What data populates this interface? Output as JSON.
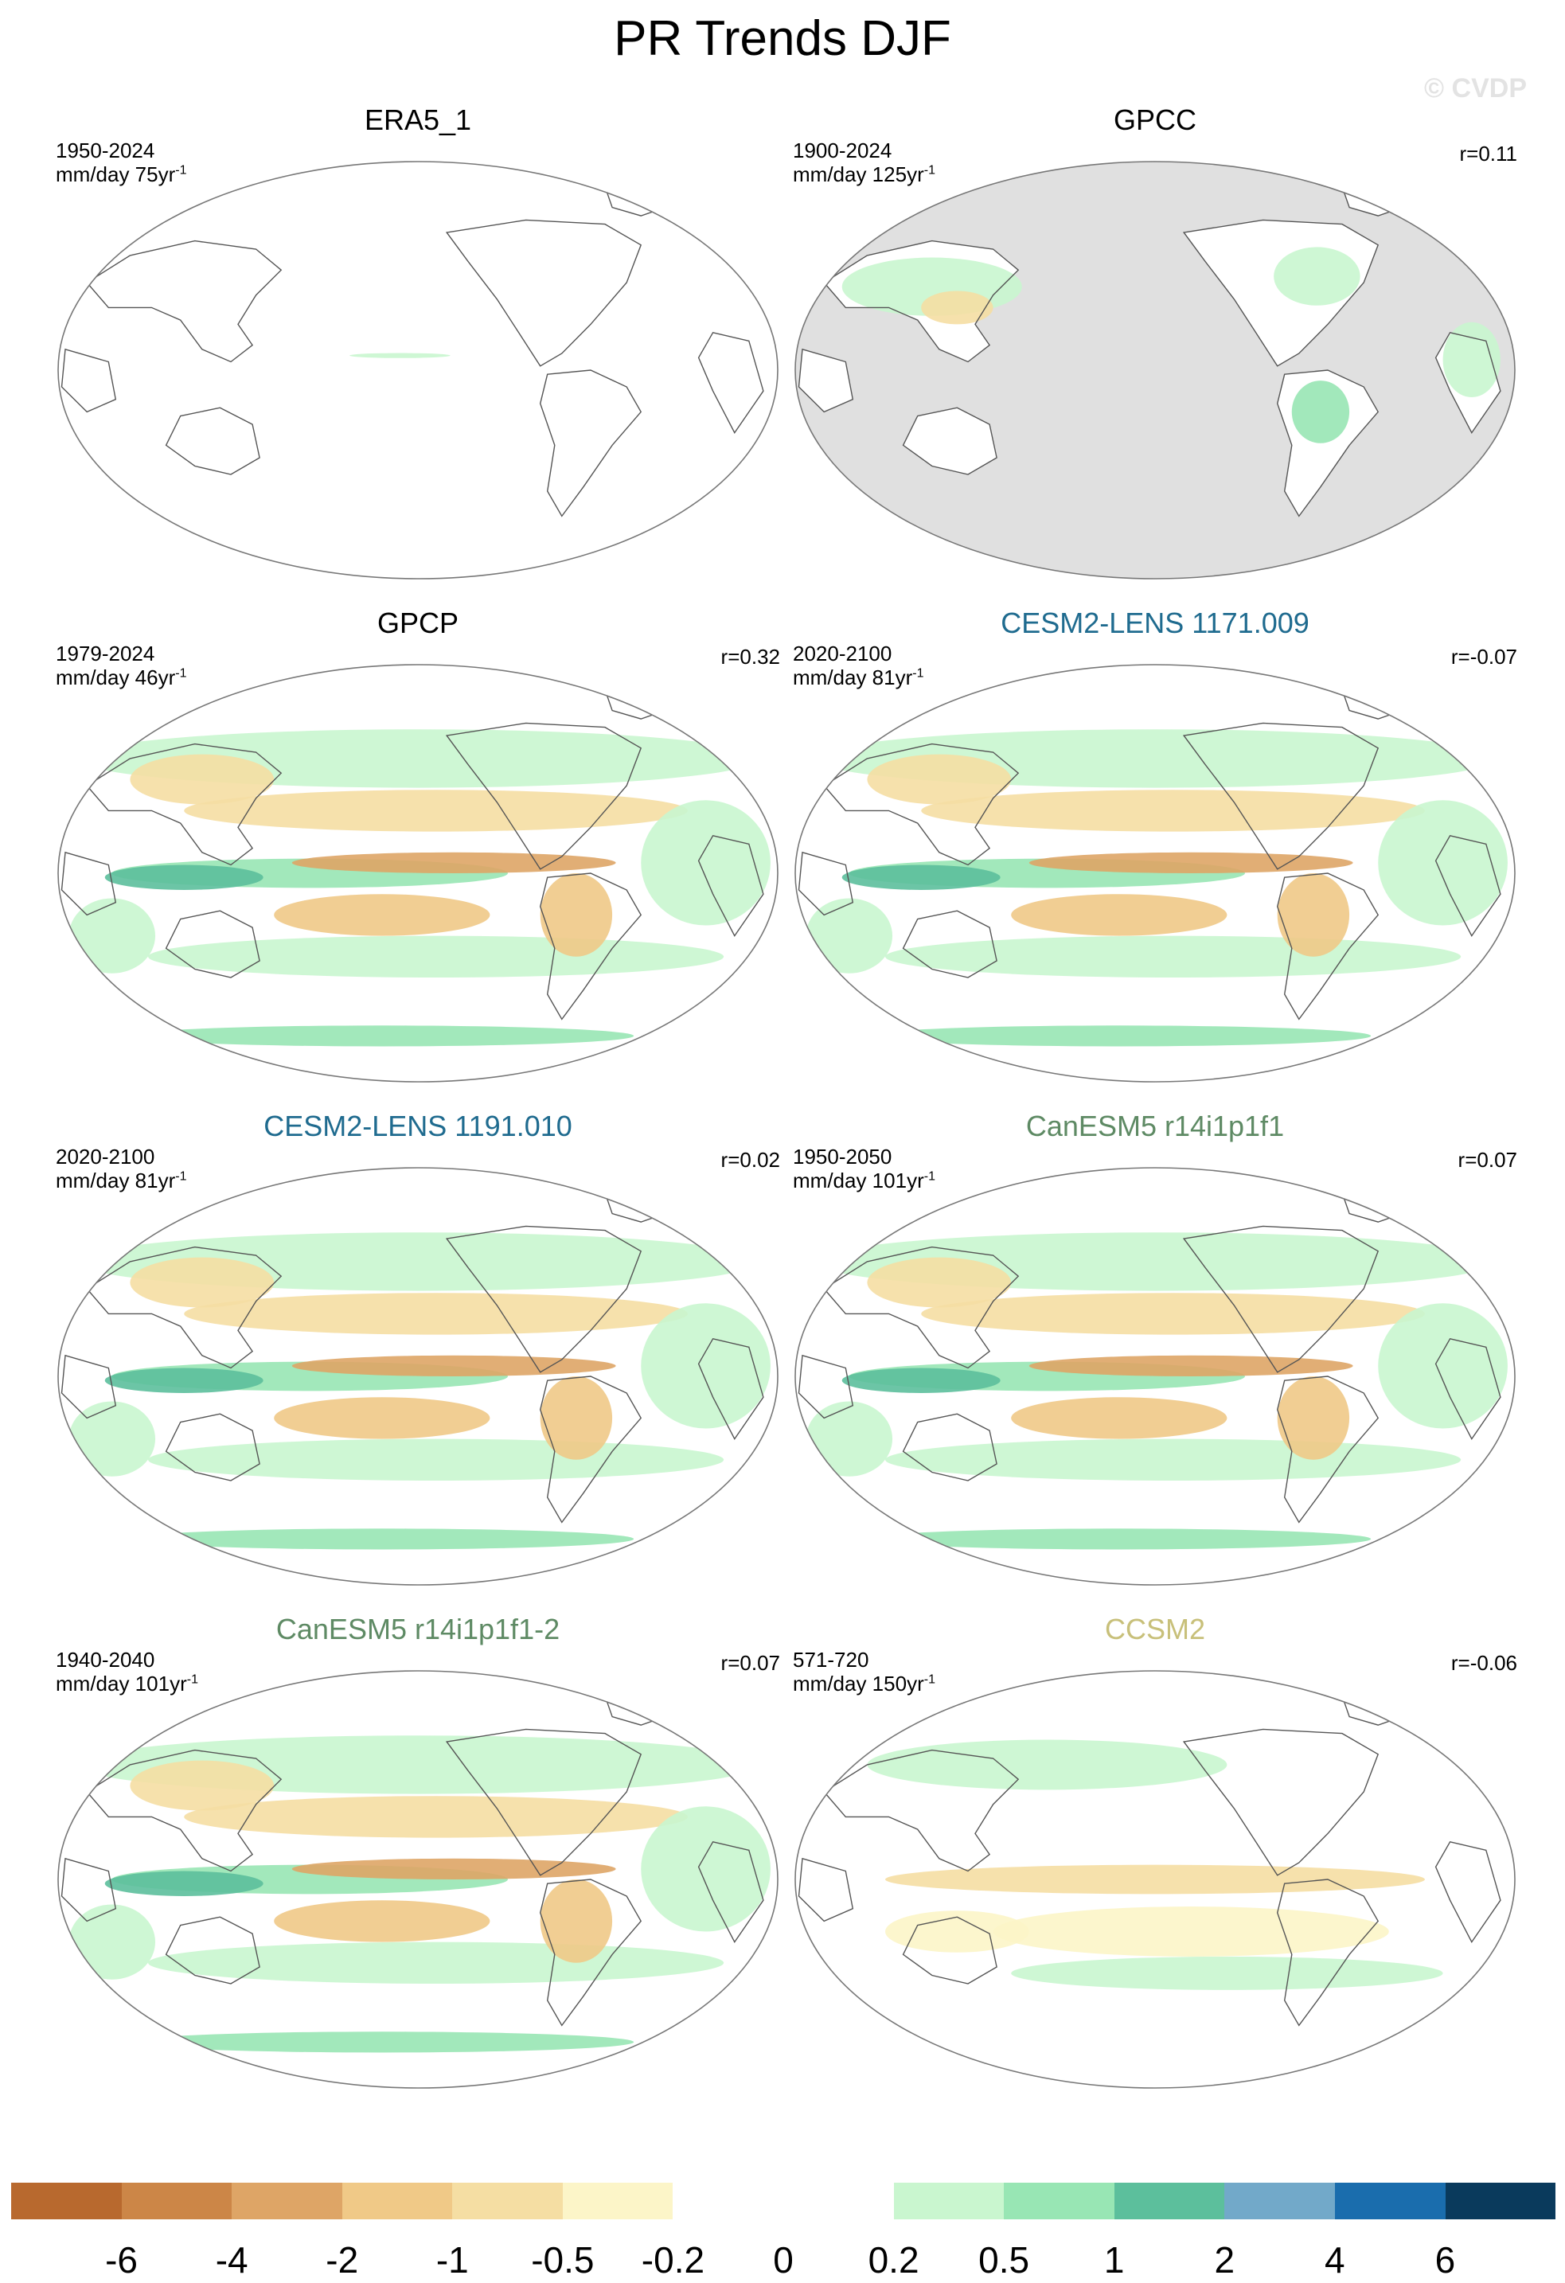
{
  "figure": {
    "title": "PR Trends DJF",
    "watermark": "© CVDP"
  },
  "panels": [
    {
      "title": "ERA5_1",
      "title_color": "#000000",
      "period": "1950-2024",
      "units": "mm/day 75yr",
      "units_sup": "-1",
      "r": "",
      "fill": "none"
    },
    {
      "title": "GPCC",
      "title_color": "#000000",
      "period": "1900-2024",
      "units": "mm/day 125yr",
      "units_sup": "-1",
      "r": "r=0.11",
      "fill": "land-only"
    },
    {
      "title": "GPCP",
      "title_color": "#000000",
      "period": "1979-2024",
      "units": "mm/day 46yr",
      "units_sup": "-1",
      "r": "r=0.32",
      "fill": "full"
    },
    {
      "title": "CESM2-LENS 1171.009",
      "title_color": "#1f6b8f",
      "period": "2020-2100",
      "units": "mm/day 81yr",
      "units_sup": "-1",
      "r": "r=-0.07",
      "fill": "full"
    },
    {
      "title": "CESM2-LENS 1191.010",
      "title_color": "#1f6b8f",
      "period": "2020-2100",
      "units": "mm/day 81yr",
      "units_sup": "-1",
      "r": "r=0.02",
      "fill": "full"
    },
    {
      "title": "CanESM5 r14i1p1f1",
      "title_color": "#5e8a64",
      "period": "1950-2050",
      "units": "mm/day 101yr",
      "units_sup": "-1",
      "r": "r=0.07",
      "fill": "full"
    },
    {
      "title": "CanESM5 r14i1p1f1-2",
      "title_color": "#5e8a64",
      "period": "1940-2040",
      "units": "mm/day 101yr",
      "units_sup": "-1",
      "r": "r=0.07",
      "fill": "full"
    },
    {
      "title": "CCSM2",
      "title_color": "#c8c07a",
      "period": "571-720",
      "units": "mm/day 150yr",
      "units_sup": "-1",
      "r": "r=-0.06",
      "fill": "weak"
    }
  ],
  "colorbar": {
    "colors": [
      "#b8692e",
      "#cc8647",
      "#dea566",
      "#f0c987",
      "#f5dea3",
      "#fcf5c8",
      "#ffffff",
      "#ffffff",
      "#c9f6cf",
      "#98e6b4",
      "#5cbf9c",
      "#72a9c9",
      "#1a6dad",
      "#0a3a5c"
    ],
    "labels": [
      "-6",
      "-4",
      "-2",
      "-1",
      "-0.5",
      "-0.2",
      "0",
      "0.2",
      "0.5",
      "1",
      "2",
      "4",
      "6"
    ]
  }
}
